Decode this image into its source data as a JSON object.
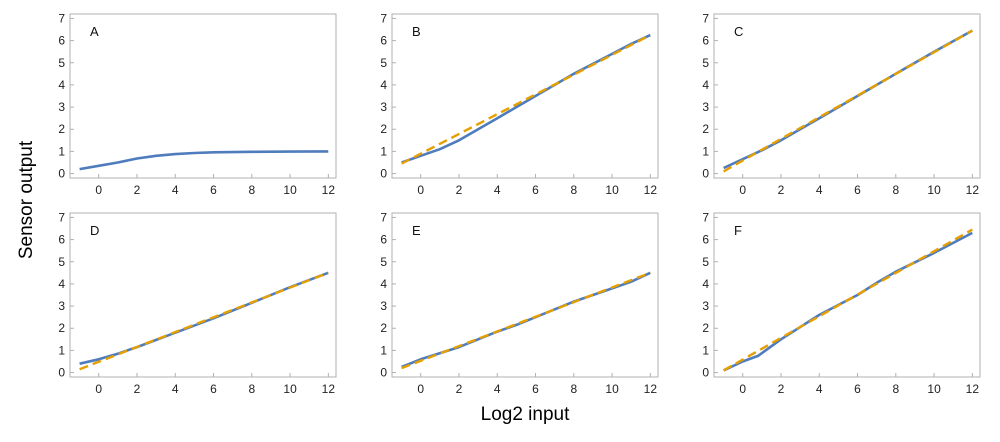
{
  "chart_data": {
    "type": "line",
    "xlabel": "Log2 input",
    "ylabel": "Sensor output",
    "xlim": [
      -1.5,
      12.4
    ],
    "ylim": [
      -0.2,
      7.2
    ],
    "xticks": [
      0,
      2,
      4,
      6,
      8,
      10,
      12
    ],
    "yticks": [
      0,
      1,
      2,
      3,
      4,
      5,
      6,
      7
    ],
    "grid": false,
    "colors": {
      "solid": "#4f7cbc",
      "dashed": "#e69f00",
      "frame": "#b0b0b0"
    },
    "panels": [
      {
        "label": "A",
        "solid": {
          "x": [
            -1,
            0,
            1,
            2,
            3,
            4,
            5,
            6,
            8,
            10,
            12
          ],
          "y": [
            0.2,
            0.35,
            0.5,
            0.68,
            0.8,
            0.88,
            0.93,
            0.96,
            0.98,
            0.99,
            1.0
          ]
        },
        "dashed": null
      },
      {
        "label": "B",
        "solid": {
          "x": [
            -1,
            0,
            1,
            2,
            4,
            6,
            8,
            10,
            11,
            12
          ],
          "y": [
            0.5,
            0.8,
            1.1,
            1.5,
            2.5,
            3.5,
            4.5,
            5.4,
            5.85,
            6.25
          ]
        },
        "dashed": {
          "x": [
            -1,
            12
          ],
          "y": [
            0.45,
            6.25
          ]
        }
      },
      {
        "label": "C",
        "solid": {
          "x": [
            -1,
            0,
            1,
            2,
            4,
            6,
            8,
            10,
            12
          ],
          "y": [
            0.25,
            0.65,
            1.05,
            1.5,
            2.5,
            3.5,
            4.5,
            5.5,
            6.45
          ]
        },
        "dashed": {
          "x": [
            -1,
            12
          ],
          "y": [
            0.1,
            6.45
          ]
        }
      },
      {
        "label": "D",
        "solid": {
          "x": [
            -1,
            0,
            1,
            2,
            4,
            6,
            8,
            10,
            12
          ],
          "y": [
            0.4,
            0.6,
            0.85,
            1.15,
            1.8,
            2.45,
            3.15,
            3.85,
            4.5
          ]
        },
        "dashed": {
          "x": [
            -1,
            12
          ],
          "y": [
            0.15,
            4.5
          ]
        }
      },
      {
        "label": "E",
        "solid": {
          "x": [
            -1,
            0,
            2,
            4,
            5,
            6,
            8,
            10,
            11,
            12
          ],
          "y": [
            0.25,
            0.6,
            1.15,
            1.85,
            2.15,
            2.5,
            3.2,
            3.8,
            4.1,
            4.5
          ]
        },
        "dashed": {
          "x": [
            -1,
            12
          ],
          "y": [
            0.2,
            4.5
          ]
        }
      },
      {
        "label": "F",
        "solid": {
          "x": [
            -1,
            0,
            0.8,
            2,
            4,
            6,
            7,
            8,
            10,
            12
          ],
          "y": [
            0.1,
            0.5,
            0.75,
            1.5,
            2.6,
            3.5,
            4.05,
            4.55,
            5.4,
            6.3
          ]
        },
        "dashed": {
          "x": [
            -1,
            12
          ],
          "y": [
            0.1,
            6.45
          ]
        }
      }
    ]
  }
}
